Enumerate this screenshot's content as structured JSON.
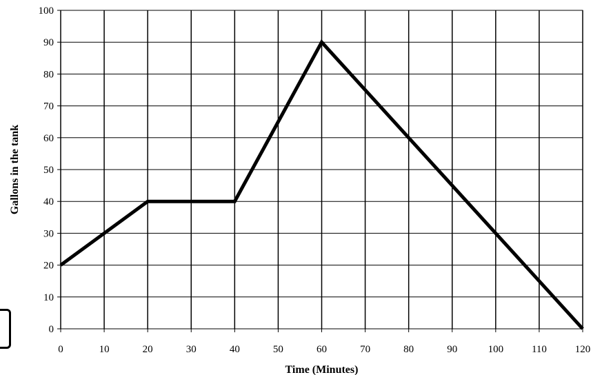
{
  "chart_data": {
    "type": "line",
    "title": "",
    "xlabel": "Time (Minutes)",
    "ylabel": "Gallons in the tank",
    "xlim": [
      0,
      120
    ],
    "ylim": [
      0,
      100
    ],
    "xticks": [
      0,
      10,
      20,
      30,
      40,
      50,
      60,
      70,
      80,
      90,
      100,
      110,
      120
    ],
    "yticks": [
      0,
      10,
      20,
      30,
      40,
      50,
      60,
      70,
      80,
      90,
      100
    ],
    "grid": {
      "horizontal": true,
      "vertical": true
    },
    "legend": "none",
    "series": [
      {
        "color": "#000000",
        "points": [
          {
            "x": 0,
            "y": 20
          },
          {
            "x": 20,
            "y": 40
          },
          {
            "x": 40,
            "y": 40
          },
          {
            "x": 60,
            "y": 90
          },
          {
            "x": 120,
            "y": 0
          }
        ]
      }
    ]
  }
}
